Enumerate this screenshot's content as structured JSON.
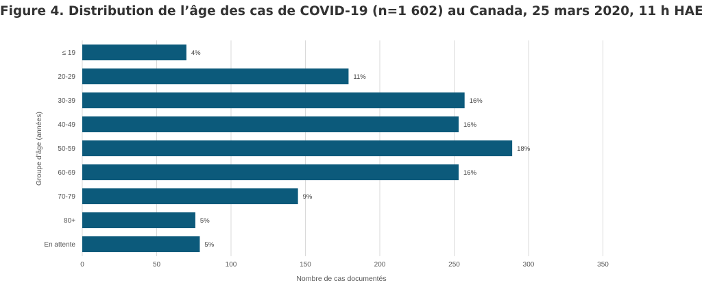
{
  "chart_data": {
    "type": "bar",
    "orientation": "horizontal",
    "title": "Figure 4. Distribution de l’âge des cas de COVID-19 (n=1 602) au Canada, 25 mars 2020, 11 h HAE",
    "xlabel": "Nombre de cas documentés",
    "ylabel": "Groupe d’âge (années)",
    "categories": [
      "≤ 19",
      "20-29",
      "30-39",
      "40-49",
      "50-59",
      "60-69",
      "70-79",
      "80+",
      "En attente"
    ],
    "values": [
      70,
      179,
      257,
      253,
      289,
      253,
      145,
      76,
      79
    ],
    "data_labels": [
      "4%",
      "11%",
      "16%",
      "16%",
      "18%",
      "16%",
      "9%",
      "5%",
      "5%"
    ],
    "xlim": [
      0,
      400
    ],
    "xticks": [
      0,
      50,
      100,
      150,
      200,
      250,
      300,
      350
    ],
    "grid": "vertical",
    "legend": "none",
    "bar_color": "#0c5a7b",
    "grid_color": "#d9d9d9"
  }
}
